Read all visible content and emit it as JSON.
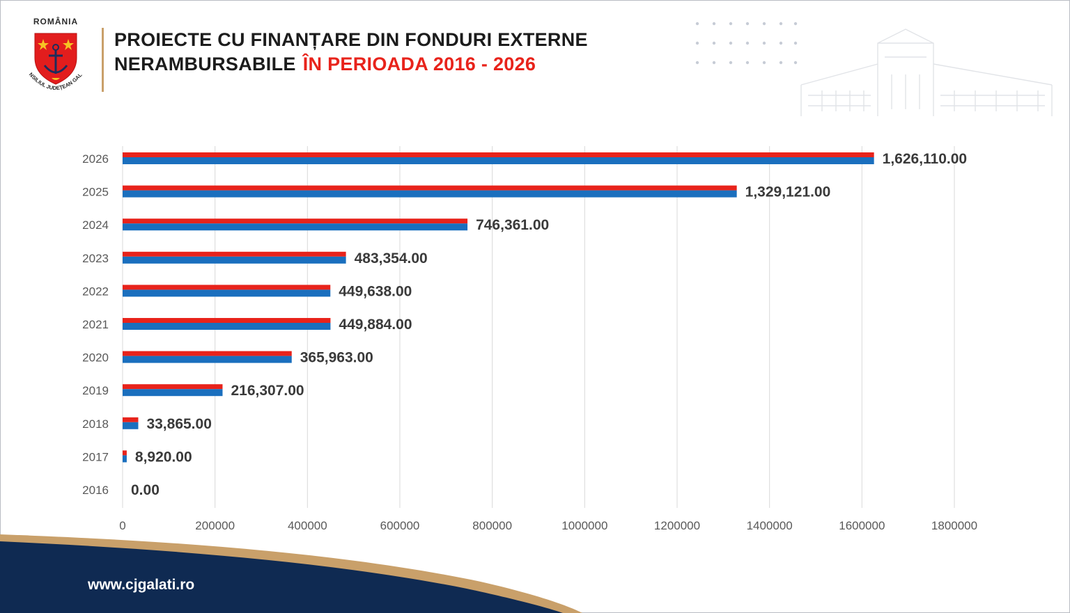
{
  "header": {
    "logo_top_text": "ROMÂNIA",
    "logo_ring_text": "CONSILIUL JUDEȚEAN GALAȚI",
    "title_line1": "PROIECTE CU FINANȚARE DIN FONDURI EXTERNE",
    "title_line2": "NERAMBURSABILE",
    "title_line2_accent": "ÎN PERIOADA 2016 - 2026"
  },
  "footer": {
    "url": "www.cjgalati.ro"
  },
  "colors": {
    "red": "#e8231b",
    "blue": "#1a6fbe",
    "navy": "#0f2a52",
    "gold": "#c9a06a",
    "grid": "#d9d9d9",
    "axis_text": "#595959"
  },
  "chart_data": {
    "type": "bar",
    "orientation": "horizontal",
    "categories": [
      "2026",
      "2025",
      "2024",
      "2023",
      "2022",
      "2021",
      "2020",
      "2019",
      "2018",
      "2017",
      "2016"
    ],
    "values": [
      1626110,
      1329121,
      746361,
      483354,
      449638,
      449884,
      365963,
      216307,
      33865,
      8920,
      0
    ],
    "data_labels": [
      "1,626,110.00",
      "1,329,121.00",
      "746,361.00",
      "483,354.00",
      "449,638.00",
      "449,884.00",
      "365,963.00",
      "216,307.00",
      "33,865.00",
      "8,920.00",
      "0.00"
    ],
    "x_ticks": [
      0,
      200000,
      400000,
      600000,
      800000,
      1000000,
      1200000,
      1400000,
      1600000,
      1800000
    ],
    "x_tick_labels": [
      "0",
      "200000",
      "400000",
      "600000",
      "800000",
      "1000000",
      "1200000",
      "1400000",
      "1600000",
      "1800000"
    ],
    "xlim": [
      0,
      1800000
    ],
    "grid": "vertical",
    "bar_style": "red top stripe over blue body",
    "title": "",
    "xlabel": "",
    "ylabel": ""
  }
}
